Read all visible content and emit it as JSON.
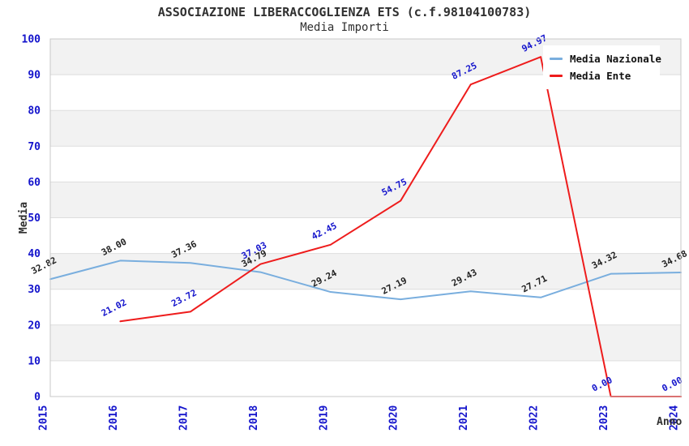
{
  "chart_data": {
    "type": "line",
    "title": "ASSOCIAZIONE LIBERACCOGLIENZA ETS (c.f.98104100783)",
    "subtitle": "Media Importi",
    "xlabel": "Anno",
    "ylabel": "Media",
    "categories": [
      "2015",
      "2016",
      "2017",
      "2018",
      "2019",
      "2020",
      "2021",
      "2022",
      "2023",
      "2024"
    ],
    "series": [
      {
        "name": "Media Nazionale",
        "color": "#79aede",
        "label_color": "#222222",
        "x": [
          "2015",
          "2016",
          "2017",
          "2018",
          "2019",
          "2020",
          "2021",
          "2022",
          "2023",
          "2024"
        ],
        "values": [
          32.82,
          38.0,
          37.36,
          34.79,
          29.24,
          27.19,
          29.43,
          27.71,
          34.32,
          34.68
        ]
      },
      {
        "name": "Media Ente",
        "color": "#ee1c1c",
        "label_color": "#1414cc",
        "x": [
          "2016",
          "2017",
          "2018",
          "2019",
          "2020",
          "2021",
          "2022",
          "2023",
          "2024"
        ],
        "values": [
          21.02,
          23.72,
          37.03,
          42.45,
          54.75,
          87.25,
          94.97,
          0.0,
          0.0
        ]
      }
    ],
    "ylim": [
      0,
      100
    ],
    "y_tick_step": 10,
    "y_tick_labels": [
      "0",
      "10",
      "20",
      "30",
      "40",
      "50",
      "60",
      "70",
      "80",
      "90",
      "100"
    ],
    "grid": "horizontal-bands",
    "legend_position": "top-right",
    "data_labels": "two-decimals-rotated"
  },
  "colors": {
    "band": "#f2f2f2",
    "gridline": "#dedede",
    "plot_border": "#c8c8c8",
    "axis_tick_text": "#1414cc",
    "title_text": "#303030",
    "legend_text": "#111111",
    "background": "#ffffff"
  }
}
